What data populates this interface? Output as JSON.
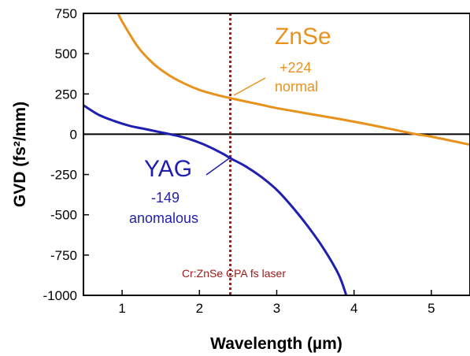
{
  "chart_data": {
    "type": "line",
    "title": "",
    "xlabel": "Wavelength (µm)",
    "ylabel": "GVD (fs²/mm)",
    "xlim": [
      0.5,
      5.5
    ],
    "ylim": [
      -1000,
      750
    ],
    "x_ticks": [
      "1",
      "2",
      "3",
      "4",
      "5"
    ],
    "x_tick_values": [
      1,
      2,
      3,
      4,
      5
    ],
    "y_ticks": [
      "750",
      "500",
      "250",
      "0",
      "-250",
      "-500",
      "-750",
      "-1000"
    ],
    "y_tick_values": [
      750,
      500,
      250,
      0,
      -250,
      -500,
      -750,
      -1000
    ],
    "grid": false,
    "series": [
      {
        "name": "ZnSe",
        "color": "#e8921e",
        "x": [
          0.95,
          1.0,
          1.2,
          1.4,
          1.6,
          1.8,
          2.0,
          2.2,
          2.4,
          2.6,
          2.8,
          3.0,
          3.5,
          4.0,
          4.5,
          4.8,
          5.0,
          5.5
        ],
        "y": [
          750,
          700,
          545,
          440,
          368,
          316,
          275,
          247,
          224,
          203,
          183,
          162,
          120,
          78,
          30,
          0,
          -15,
          -65
        ]
      },
      {
        "name": "YAG",
        "color": "#1f1fb0",
        "x": [
          0.5,
          0.7,
          0.9,
          1.1,
          1.3,
          1.5,
          1.7,
          1.9,
          2.1,
          2.3,
          2.4,
          2.6,
          2.8,
          3.0,
          3.2,
          3.4,
          3.6,
          3.8,
          3.9
        ],
        "y": [
          180,
          120,
          82,
          52,
          32,
          12,
          -8,
          -35,
          -72,
          -120,
          -149,
          -200,
          -265,
          -345,
          -450,
          -570,
          -705,
          -870,
          -1000
        ]
      }
    ],
    "reference_line": {
      "x": 2.4,
      "color": "#a01818",
      "label": "Cr:ZnSe CPA fs laser"
    },
    "zero_line": {
      "y": 0,
      "color": "#000000"
    },
    "annotations": {
      "znse_name": "ZnSe",
      "znse_value": "+224",
      "znse_type": "normal",
      "yag_name": "YAG",
      "yag_value": "-149",
      "yag_type": "anomalous"
    }
  }
}
